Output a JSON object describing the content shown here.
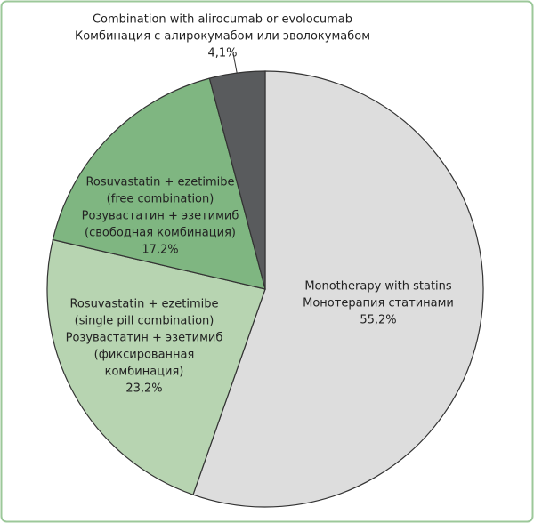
{
  "chart_data": {
    "type": "pie",
    "labels": [
      [
        "Monotherapy with statins",
        "Монотерапия статинами"
      ],
      [
        "Rosuvastatin + ezetimibe",
        "(single pill combination)",
        "Розувастатин + эзетимиб",
        "(фиксированная",
        "комбинация)"
      ],
      [
        "Rosuvastatin + ezetimibe",
        "(free combination)",
        "Розувастатин + эзетимиб",
        "(свободная комбинация)"
      ],
      [
        "Combination with alirocumab or evolocumab",
        "Комбинация с алирокумабом или эволокумабом"
      ]
    ],
    "values": [
      55.2,
      23.2,
      17.2,
      4.1
    ],
    "value_labels": [
      "55,2%",
      "23,2%",
      "17,2%",
      "4,1%"
    ],
    "colors": [
      "#dddddd",
      "#b7d4b1",
      "#7fb681",
      "#595b5d"
    ]
  }
}
